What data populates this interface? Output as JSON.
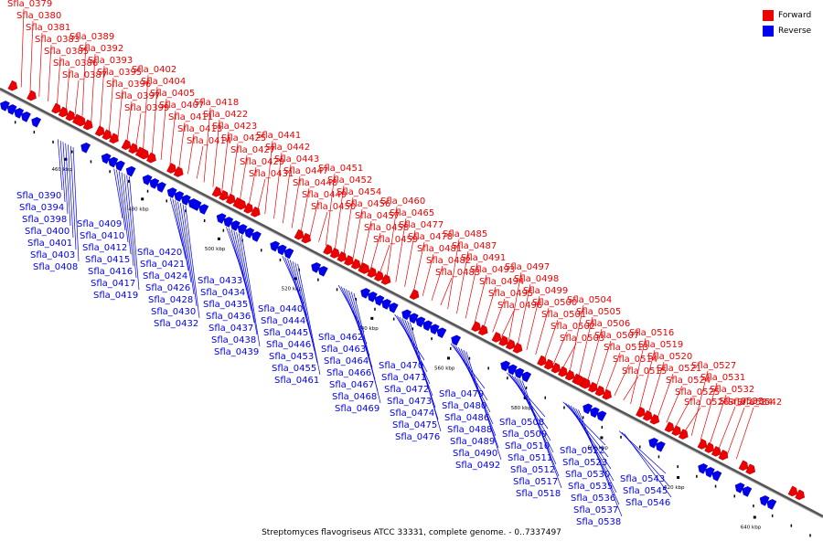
{
  "caption": "Streptomyces flavogriseus ATCC 33331, complete genome. - 0..7337497",
  "legend": [
    {
      "label": "Forward",
      "color": "#ee0000"
    },
    {
      "label": "Reverse",
      "color": "#0000ee"
    }
  ],
  "colors": {
    "forward": "#ee0000",
    "reverse": "#0000ee",
    "axis": "#555555"
  },
  "scale_ticks": [
    "460 kbp",
    "480 kbp",
    "500 kbp",
    "520 kbp",
    "540 kbp",
    "560 kbp",
    "580 kbp",
    "600 kbp",
    "620 kbp",
    "640 kbp"
  ],
  "forward_genes": [
    "Sfla_0379",
    "Sfla_0380",
    "Sfla_0381",
    "Sfla_0383",
    "Sfla_0385",
    "Sfla_0386",
    "Sfla_0387",
    "Sfla_0389",
    "Sfla_0392",
    "Sfla_0393",
    "Sfla_0395",
    "Sfla_0396",
    "Sfla_0397",
    "Sfla_0399",
    "Sfla_0402",
    "Sfla_0404",
    "Sfla_0405",
    "Sfla_0407",
    "Sfla_0411",
    "Sfla_0413",
    "Sfla_0414",
    "Sfla_0418",
    "Sfla_0422",
    "Sfla_0423",
    "Sfla_0425",
    "Sfla_0427",
    "Sfla_0429",
    "Sfla_0431",
    "Sfla_0441",
    "Sfla_0442",
    "Sfla_0443",
    "Sfla_0447",
    "Sfla_0448",
    "Sfla_0449",
    "Sfla_0450",
    "Sfla_0451",
    "Sfla_0452",
    "Sfla_0454",
    "Sfla_0456",
    "Sfla_0457",
    "Sfla_0458",
    "Sfla_0459",
    "Sfla_0460",
    "Sfla_0465",
    "Sfla_0477",
    "Sfla_0478",
    "Sfla_0481",
    "Sfla_0482",
    "Sfla_0483",
    "Sfla_0485",
    "Sfla_0487",
    "Sfla_0491",
    "Sfla_0493",
    "Sfla_0494",
    "Sfla_0495",
    "Sfla_0496",
    "Sfla_0497",
    "Sfla_0498",
    "Sfla_0499",
    "Sfla_0500",
    "Sfla_0501",
    "Sfla_0502",
    "Sfla_0503",
    "Sfla_0504",
    "Sfla_0505",
    "Sfla_0506",
    "Sfla_0507",
    "Sfla_0513",
    "Sfla_0514",
    "Sfla_0515",
    "Sfla_0516",
    "Sfla_0519",
    "Sfla_0520",
    "Sfla_0521",
    "Sfla_0524",
    "Sfla_0525",
    "Sfla_0526",
    "Sfla_0527",
    "Sfla_0531",
    "Sfla_0532",
    "Sfla_0533",
    "Sfla_0534",
    "Sfla_0542"
  ],
  "reverse_genes": [
    "Sfla_0390",
    "Sfla_0394",
    "Sfla_0398",
    "Sfla_0400",
    "Sfla_0401",
    "Sfla_0403",
    "Sfla_0408",
    "Sfla_0409",
    "Sfla_0410",
    "Sfla_0412",
    "Sfla_0415",
    "Sfla_0416",
    "Sfla_0417",
    "Sfla_0419",
    "Sfla_0420",
    "Sfla_0421",
    "Sfla_0424",
    "Sfla_0426",
    "Sfla_0428",
    "Sfla_0430",
    "Sfla_0432",
    "Sfla_0433",
    "Sfla_0434",
    "Sfla_0435",
    "Sfla_0436",
    "Sfla_0437",
    "Sfla_0438",
    "Sfla_0439",
    "Sfla_0440",
    "Sfla_0444",
    "Sfla_0445",
    "Sfla_0446",
    "Sfla_0453",
    "Sfla_0455",
    "Sfla_0461",
    "Sfla_0462",
    "Sfla_0463",
    "Sfla_0464",
    "Sfla_0466",
    "Sfla_0467",
    "Sfla_0468",
    "Sfla_0469",
    "Sfla_0470",
    "Sfla_0471",
    "Sfla_0472",
    "Sfla_0473",
    "Sfla_0474",
    "Sfla_0475",
    "Sfla_0476",
    "Sfla_0479",
    "Sfla_0480",
    "Sfla_0486",
    "Sfla_0488",
    "Sfla_0489",
    "Sfla_0490",
    "Sfla_0492",
    "Sfla_0508",
    "Sfla_0509",
    "Sfla_0510",
    "Sfla_0511",
    "Sfla_0512",
    "Sfla_0517",
    "Sfla_0518",
    "Sfla_0522",
    "Sfla_0523",
    "Sfla_0530",
    "Sfla_0535",
    "Sfla_0536",
    "Sfla_0537",
    "Sfla_0538",
    "Sfla_0543",
    "Sfla_0545",
    "Sfla_0546"
  ]
}
